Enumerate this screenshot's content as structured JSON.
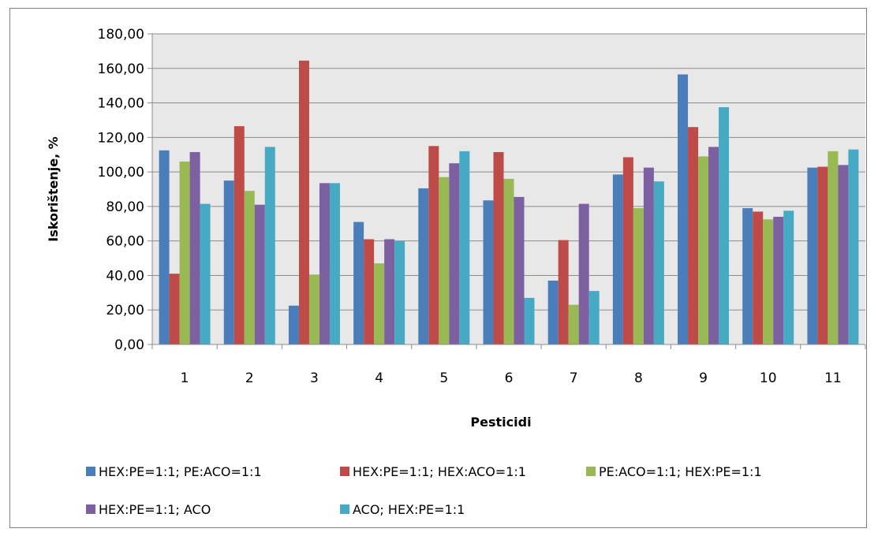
{
  "chart_data": {
    "type": "bar",
    "title": "",
    "xlabel": "Pesticidi",
    "ylabel": "Iskorištenje, %",
    "ylim": [
      0,
      180
    ],
    "ytick_step": 20,
    "ytick_labels": [
      "0,00",
      "20,00",
      "40,00",
      "60,00",
      "80,00",
      "100,00",
      "120,00",
      "140,00",
      "160,00",
      "180,00"
    ],
    "grid": true,
    "legend_position": "bottom",
    "categories": [
      "1",
      "2",
      "3",
      "4",
      "5",
      "6",
      "7",
      "8",
      "9",
      "10",
      "11"
    ],
    "series": [
      {
        "name": "HEX:PE=1:1; PE:ACO=1:1",
        "color": "#4a7ebb",
        "values": [
          112.5,
          95,
          22.5,
          71,
          90.5,
          83.5,
          37,
          98.5,
          156.5,
          79,
          102.5
        ]
      },
      {
        "name": "HEX:PE=1:1; HEX:ACO=1:1",
        "color": "#be4b48",
        "values": [
          41,
          126.5,
          164.5,
          61,
          115,
          111.5,
          60.5,
          108.5,
          126,
          77,
          103
        ]
      },
      {
        "name": "PE:ACO=1:1; HEX:PE=1:1",
        "color": "#98b954",
        "values": [
          106,
          89,
          40.5,
          47,
          97,
          96,
          23,
          79,
          109,
          72.5,
          112
        ]
      },
      {
        "name": "HEX:PE=1:1; ACO",
        "color": "#7d60a0",
        "values": [
          111.5,
          81,
          93.5,
          61,
          105,
          85.5,
          81.5,
          102.5,
          114.5,
          74,
          104
        ]
      },
      {
        "name": "ACO; HEX:PE=1:1",
        "color": "#46aac5",
        "values": [
          81.5,
          114.5,
          93.5,
          60,
          112,
          27,
          31,
          94.5,
          137.5,
          77.5,
          113
        ]
      }
    ]
  }
}
